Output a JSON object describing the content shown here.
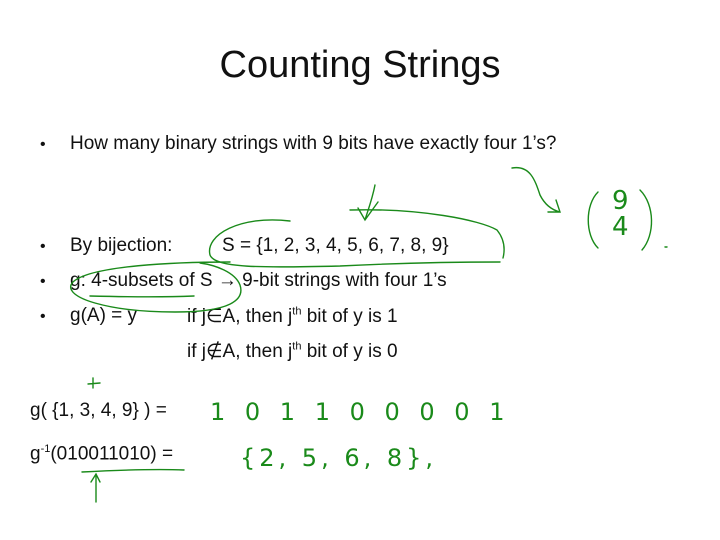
{
  "title": "Counting Strings",
  "bullets": [
    {
      "text": "How many binary strings with 9 bits have exactly four 1’s?"
    },
    {
      "label": "By bijection:",
      "text": "S = {1, 2, 3, 4, 5, 6, 7, 8, 9}"
    },
    {
      "text": "g: 4-subsets of S → 9-bit strings with four 1’s"
    },
    {
      "label": "g(A) = y",
      "text": "if j∈A, then j",
      "sup": "th",
      "rest": " bit of y is 1"
    }
  ],
  "continuation": {
    "text": "if j∉A, then j",
    "sup": "th",
    "rest": " bit of y is 0"
  },
  "examples": [
    {
      "text": "g( {1, 3, 4, 9} ) ="
    },
    {
      "prefix": "g",
      "sup": "-1",
      "text": "(010011010) ="
    }
  ],
  "handwriting": {
    "binom_top": "9",
    "binom_bottom": "4",
    "answer1": "1 0 1 1 0 0 0 0 1",
    "answer2": "{2, 5, 6, 8},",
    "ink_color": "#1a8a1a"
  }
}
